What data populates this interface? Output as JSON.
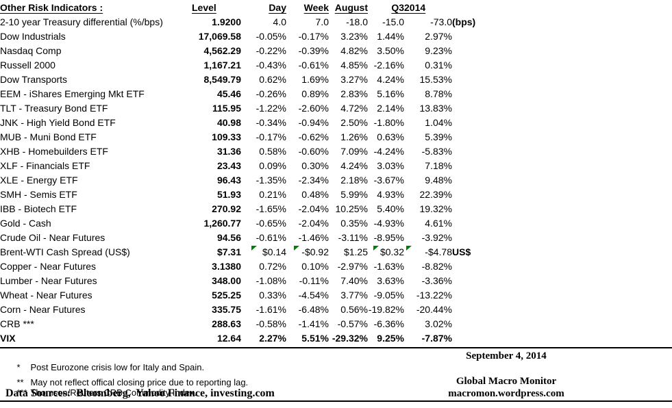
{
  "colors": {
    "background": "#ffffff",
    "text": "#000000",
    "rule": "#000000",
    "comment_triangle_green": "#008000"
  },
  "table": {
    "title": "Other Risk Indicators :",
    "columns": [
      "Level",
      "Day",
      "Week",
      "August",
      "Q3",
      "2014"
    ],
    "rows": [
      {
        "label": "2-10 year Treasury differential (%/bps)",
        "level": "1.9200",
        "day": "4.0",
        "week": "7.0",
        "august": "-18.0",
        "q3": "-15.0",
        "y2014": "-73.0",
        "unit": "(bps)",
        "bold": false,
        "flags": []
      },
      {
        "label": "Dow Industrials",
        "level": "17,069.58",
        "day": "-0.05%",
        "week": "-0.17%",
        "august": "3.23%",
        "q3": "1.44%",
        "y2014": "2.97%",
        "bold": false,
        "flags": []
      },
      {
        "label": "Nasdaq Comp",
        "level": "4,562.29",
        "day": "-0.22%",
        "week": "-0.39%",
        "august": "4.82%",
        "q3": "3.50%",
        "y2014": "9.23%",
        "bold": false,
        "flags": []
      },
      {
        "label": "Russell 2000",
        "level": "1,167.21",
        "day": "-0.43%",
        "week": "-0.61%",
        "august": "4.85%",
        "q3": "-2.16%",
        "y2014": "0.31%",
        "bold": false,
        "flags": []
      },
      {
        "label": "Dow Transports",
        "level": "8,549.79",
        "day": "0.62%",
        "week": "1.69%",
        "august": "3.27%",
        "q3": "4.24%",
        "y2014": "15.53%",
        "bold": false,
        "flags": []
      },
      {
        "label": "EEM - iShares Emerging Mkt ETF",
        "level": "45.46",
        "day": "-0.26%",
        "week": "0.89%",
        "august": "2.83%",
        "q3": "5.16%",
        "y2014": "8.78%",
        "bold": false,
        "flags": []
      },
      {
        "label": "TLT - Treasury Bond ETF",
        "level": "115.95",
        "day": "-1.22%",
        "week": "-2.60%",
        "august": "4.72%",
        "q3": "2.14%",
        "y2014": "13.83%",
        "bold": false,
        "flags": []
      },
      {
        "label": "JNK - High Yield Bond ETF",
        "level": "40.98",
        "day": "-0.34%",
        "week": "-0.94%",
        "august": "2.50%",
        "q3": "-1.80%",
        "y2014": "1.04%",
        "bold": false,
        "flags": []
      },
      {
        "label": "MUB - Muni Bond ETF",
        "level": "109.33",
        "day": "-0.17%",
        "week": "-0.62%",
        "august": "1.26%",
        "q3": "0.63%",
        "y2014": "5.39%",
        "bold": false,
        "flags": []
      },
      {
        "label": "XHB - Homebuilders ETF",
        "level": "31.36",
        "day": "0.58%",
        "week": "-0.60%",
        "august": "7.09%",
        "q3": "-4.24%",
        "y2014": "-5.83%",
        "bold": false,
        "flags": []
      },
      {
        "label": "XLF - Financials ETF",
        "level": "23.43",
        "day": "0.09%",
        "week": "0.30%",
        "august": "4.24%",
        "q3": "3.03%",
        "y2014": "7.18%",
        "bold": false,
        "flags": []
      },
      {
        "label": "XLE - Energy ETF",
        "level": "96.43",
        "day": "-1.35%",
        "week": "-2.34%",
        "august": "2.18%",
        "q3": "-3.67%",
        "y2014": "9.48%",
        "bold": false,
        "flags": []
      },
      {
        "label": "SMH - Semis ETF",
        "level": "51.93",
        "day": "0.21%",
        "week": "0.48%",
        "august": "5.99%",
        "q3": "4.93%",
        "y2014": "22.39%",
        "bold": false,
        "flags": []
      },
      {
        "label": "IBB - Biotech ETF",
        "level": "270.92",
        "day": "-1.65%",
        "week": "-2.04%",
        "august": "10.25%",
        "q3": "5.40%",
        "y2014": "19.32%",
        "bold": false,
        "flags": []
      },
      {
        "label": "Gold - Cash",
        "level": "1,260.77",
        "day": "-0.65%",
        "week": "-2.04%",
        "august": "0.35%",
        "q3": "-4.93%",
        "y2014": "4.61%",
        "bold": false,
        "flags": []
      },
      {
        "label": "Crude Oil - Near Futures",
        "level": "94.56",
        "day": "-0.61%",
        "week": "-1.46%",
        "august": "-3.11%",
        "q3": "-8.95%",
        "y2014": "-3.92%",
        "bold": false,
        "flags": []
      },
      {
        "label": "Brent-WTI Cash Spread (US$)",
        "level": "$7.31",
        "day": "$0.14",
        "week": "-$0.92",
        "august": "$1.25",
        "q3": "$0.32",
        "y2014": "-$4.78",
        "unit": "US$",
        "bold": false,
        "flags": [
          "day",
          "week",
          "q3",
          "y2014"
        ]
      },
      {
        "label": "Copper - Near Futures",
        "level": "3.1380",
        "day": "0.72%",
        "week": "0.10%",
        "august": "-2.97%",
        "q3": "-1.63%",
        "y2014": "-8.82%",
        "bold": false,
        "flags": []
      },
      {
        "label": "Lumber - Near Futures",
        "level": "348.00",
        "day": "-1.08%",
        "week": "-0.11%",
        "august": "7.40%",
        "q3": "3.63%",
        "y2014": "-3.36%",
        "bold": false,
        "flags": []
      },
      {
        "label": "Wheat - Near Futures",
        "level": "525.25",
        "day": "0.33%",
        "week": "-4.54%",
        "august": "3.77%",
        "q3": "-9.05%",
        "y2014": "-13.22%",
        "bold": false,
        "flags": []
      },
      {
        "label": "Corn - Near Futures",
        "level": "335.75",
        "day": "-1.61%",
        "week": "-6.48%",
        "august": "0.56%",
        "q3": "-19.82%",
        "y2014": "-20.44%",
        "bold": false,
        "flags": []
      },
      {
        "label": "CRB ***",
        "level": "288.63",
        "day": "-0.58%",
        "week": "-1.41%",
        "august": "-0.57%",
        "q3": "-6.36%",
        "y2014": "3.02%",
        "bold": false,
        "flags": []
      },
      {
        "label": "VIX",
        "level": "12.64",
        "day": "2.27%",
        "week": "5.51%",
        "august": "-29.32%",
        "q3": "9.25%",
        "y2014": "-7.87%",
        "bold": true,
        "flags": []
      }
    ]
  },
  "footnotes": [
    {
      "marker": "*",
      "text": "Post Eurozone crisis low for Italy and Spain."
    },
    {
      "marker": "**",
      "text": "May not reflect offical closing price due to reporting lag."
    },
    {
      "marker": "***",
      "text": "Thomson/Reuters CRB Commodity Index."
    }
  ],
  "data_sources": "Data Sources:  Bloomberg,  Yahoo Finance, investing.com",
  "right_column": {
    "date": "September 4, 2014",
    "brand": "Global Macro Monitor",
    "site": "macromon.wordpress.com"
  }
}
